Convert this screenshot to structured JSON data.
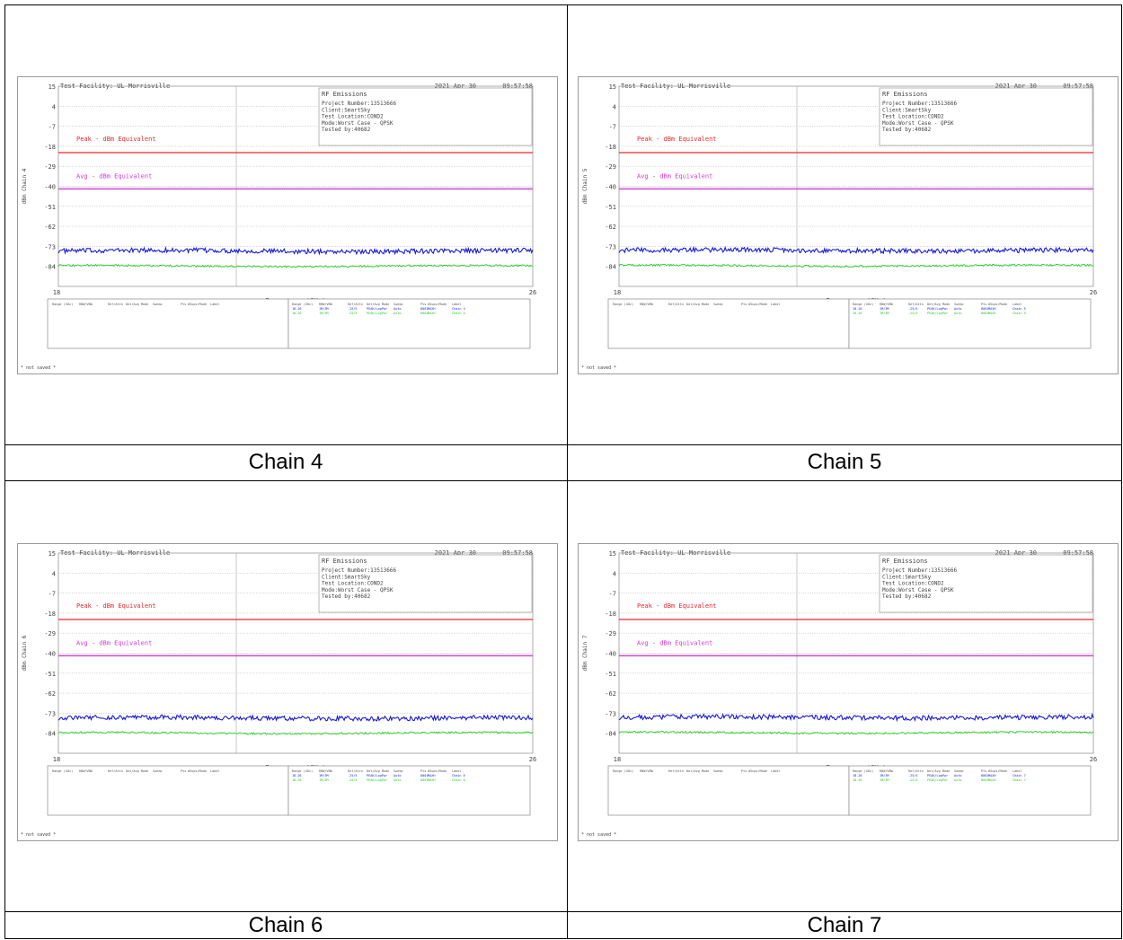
{
  "colors": {
    "peak_limit": "#e8292e",
    "avg_limit": "#d23ad2",
    "peak_trace": "#1a1ad8",
    "avg_trace": "#22cc22",
    "grid": "#b4b4b4",
    "text": "#444444"
  },
  "chart_data": [
    {
      "type": "line",
      "caption": "Chain 4",
      "header_left": "Test Facility: UL Morrisville",
      "header_date": "2021 Apr 30",
      "header_time": "09:57:58",
      "ylabel": "dBm Chain 4",
      "xlabel": "Frequency (GHz)",
      "xlim": [
        18,
        26
      ],
      "x_tick_labels": [
        "18",
        "26"
      ],
      "ylim": [
        -95,
        15
      ],
      "y_ticks": [
        15,
        4,
        -7,
        -18,
        -29,
        -40,
        -51,
        -62,
        -73,
        -84
      ],
      "info_box": [
        "RF Emissions",
        "Project Number:13513666",
        "Client:SmartSky",
        "Test Location:COND2",
        "Mode:Worst Case - QPSK",
        "Tested by:40682"
      ],
      "limit_lines": [
        {
          "label": "Peak - dBm Equivalent",
          "y": -21.5,
          "label_y": -15
        },
        {
          "label": "Avg - dBm Equivalent",
          "y": -41.5,
          "label_y": -35.5
        }
      ],
      "series": [
        {
          "level": -75.5,
          "noise": 1.3
        },
        {
          "level": -83.8,
          "noise": 0.5
        }
      ],
      "legend_headers": [
        "Range (GHz)",
        "RBW/VBW",
        "Ref/Attn",
        "Det/Avg Mode",
        "Sweep",
        "Pts",
        "#Sups/Mode",
        "Label"
      ],
      "legend_rows": [
        [
          "18-26",
          "1M/3M",
          "-25/5",
          "PEAK/LogPwr",
          "Auto",
          "8001",
          "MAXH",
          "Chain 4"
        ],
        [
          "18-26",
          "1M/3M",
          "-25/5",
          "PEAK/LogPwr",
          "Auto",
          "8001",
          "MAXH",
          "Chain 4"
        ]
      ],
      "footer": "* not saved *"
    },
    {
      "type": "line",
      "caption": "Chain 5",
      "header_left": "Test Facility: UL Morrisville",
      "header_date": "2021 Apr 30",
      "header_time": "09:57:58",
      "ylabel": "dBm Chain 5",
      "xlabel": "Frequency (GHz)",
      "xlim": [
        18,
        26
      ],
      "x_tick_labels": [
        "18",
        "26"
      ],
      "ylim": [
        -95,
        15
      ],
      "y_ticks": [
        15,
        4,
        -7,
        -18,
        -29,
        -40,
        -51,
        -62,
        -73,
        -84
      ],
      "info_box": [
        "RF Emissions",
        "Project Number:13513666",
        "Client:SmartSky",
        "Test Location:COND2",
        "Mode:Worst Case - QPSK",
        "Tested by:40682"
      ],
      "limit_lines": [
        {
          "label": "Peak - dBm Equivalent",
          "y": -21.5,
          "label_y": -15
        },
        {
          "label": "Avg - dBm Equivalent",
          "y": -41.5,
          "label_y": -35.5
        }
      ],
      "series": [
        {
          "level": -75.2,
          "noise": 1.3
        },
        {
          "level": -83.6,
          "noise": 0.5
        }
      ],
      "legend_headers": [
        "Range (GHz)",
        "RBW/VBW",
        "Ref/Attn",
        "Det/Avg Mode",
        "Sweep",
        "Pts",
        "#Sups/Mode",
        "Label"
      ],
      "legend_rows": [
        [
          "18-26",
          "1M/3M",
          "-25/5",
          "PEAK/LogPwr",
          "Auto",
          "8001",
          "MAXH",
          "Chain 5"
        ],
        [
          "18-26",
          "1M/3M",
          "-25/5",
          "PEAK/LogPwr",
          "Auto",
          "8001",
          "MAXH",
          "Chain 5"
        ]
      ],
      "footer": "* not saved *"
    },
    {
      "type": "line",
      "caption": "Chain 6",
      "header_left": "Test Facility: UL Morrisville",
      "header_date": "2021 Apr 30",
      "header_time": "09:57:58",
      "ylabel": "dBm Chain 6",
      "xlabel": "Frequency (GHz)",
      "xlim": [
        18,
        26
      ],
      "x_tick_labels": [
        "18",
        "26"
      ],
      "ylim": [
        -95,
        15
      ],
      "y_ticks": [
        15,
        4,
        -7,
        -18,
        -29,
        -40,
        -51,
        -62,
        -73,
        -84
      ],
      "info_box": [
        "RF Emissions",
        "Project Number:13513666",
        "Client:SmartSky",
        "Test Location:COND2",
        "Mode:Worst Case - QPSK",
        "Tested by:40682"
      ],
      "limit_lines": [
        {
          "label": "Peak - dBm Equivalent",
          "y": -21.5,
          "label_y": -15
        },
        {
          "label": "Avg - dBm Equivalent",
          "y": -41.5,
          "label_y": -35.5
        }
      ],
      "series": [
        {
          "level": -75.6,
          "noise": 1.3
        },
        {
          "level": -83.9,
          "noise": 0.5
        }
      ],
      "legend_headers": [
        "Range (GHz)",
        "RBW/VBW",
        "Ref/Attn",
        "Det/Avg Mode",
        "Sweep",
        "Pts",
        "#Sups/Mode",
        "Label"
      ],
      "legend_rows": [
        [
          "18-26",
          "1M/3M",
          "-25/5",
          "PEAK/LogPwr",
          "Auto",
          "8001",
          "MAXH",
          "Chain 6"
        ],
        [
          "18-26",
          "1M/3M",
          "-25/5",
          "PEAK/LogPwr",
          "Auto",
          "8001",
          "MAXH",
          "Chain 6"
        ]
      ],
      "footer": "* not saved *"
    },
    {
      "type": "line",
      "caption": "Chain 7",
      "header_left": "Test Facility: UL Morrisville",
      "header_date": "2021 Apr 30",
      "header_time": "09:57:58",
      "ylabel": "dBm Chain 7",
      "xlabel": "Frequency (GHz)",
      "xlim": [
        18,
        26
      ],
      "x_tick_labels": [
        "18",
        "26"
      ],
      "ylim": [
        -95,
        15
      ],
      "y_ticks": [
        15,
        4,
        -7,
        -18,
        -29,
        -40,
        -51,
        -62,
        -73,
        -84
      ],
      "info_box": [
        "RF Emissions",
        "Project Number:13513666",
        "Client:SmartSky",
        "Test Location:COND2",
        "Mode:Worst Case - QPSK",
        "Tested by:40682"
      ],
      "limit_lines": [
        {
          "label": "Peak - dBm Equivalent",
          "y": -21.5,
          "label_y": -15
        },
        {
          "label": "Avg - dBm Equivalent",
          "y": -41.5,
          "label_y": -35.5
        }
      ],
      "series": [
        {
          "level": -75.3,
          "noise": 1.3
        },
        {
          "level": -83.7,
          "noise": 0.5
        }
      ],
      "legend_headers": [
        "Range (GHz)",
        "RBW/VBW",
        "Ref/Attn",
        "Det/Avg Mode",
        "Sweep",
        "Pts",
        "#Sups/Mode",
        "Label"
      ],
      "legend_rows": [
        [
          "18-26",
          "1M/3M",
          "-25/5",
          "PEAK/LogPwr",
          "Auto",
          "8001",
          "MAXH",
          "Chain 7"
        ],
        [
          "18-26",
          "1M/3M",
          "-25/5",
          "PEAK/LogPwr",
          "Auto",
          "8001",
          "MAXH",
          "Chain 7"
        ]
      ],
      "footer": "* not saved *"
    }
  ]
}
